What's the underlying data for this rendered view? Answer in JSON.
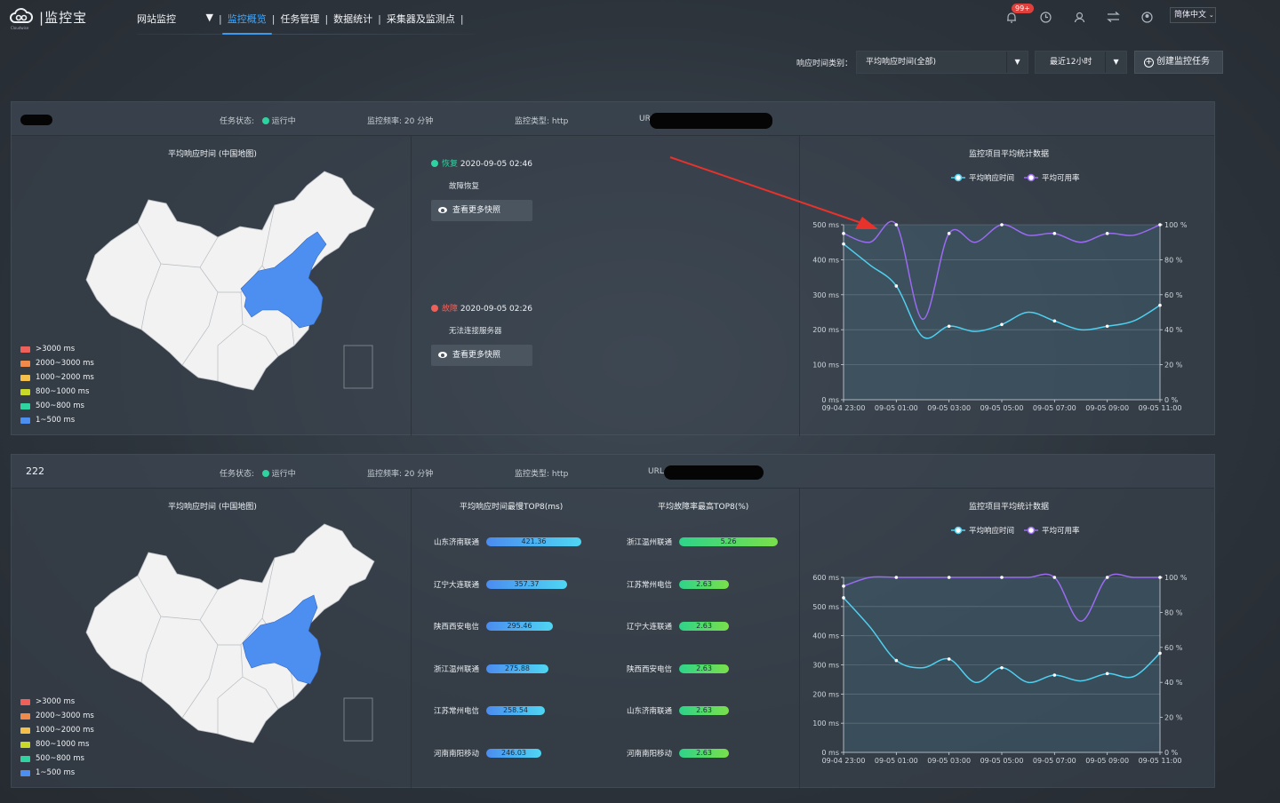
{
  "app": {
    "logo_text": "监控宝",
    "logo_sub": "Cloudwise",
    "nav": {
      "site_select": "网站监控",
      "items": [
        "监控概览",
        "任务管理",
        "数据统计",
        "采集器及监测点"
      ]
    },
    "notification_count": "99+",
    "language": "简体中文"
  },
  "toolbar": {
    "resp_type_label": "响应时间类别：",
    "resp_type_value": "平均响应时间(全部)",
    "time_range": "最近12小时",
    "create_button": "创建监控任务"
  },
  "map_legend": [
    {
      "label": ">3000 ms",
      "color": "#f0605a"
    },
    {
      "label": "2000~3000 ms",
      "color": "#f08a4b"
    },
    {
      "label": "1000~2000 ms",
      "color": "#f5c04a"
    },
    {
      "label": "800~1000 ms",
      "color": "#c9d928"
    },
    {
      "label": "500~800 ms",
      "color": "#2ed3a0"
    },
    {
      "label": "1~500 ms",
      "color": "#4d8ff0"
    }
  ],
  "tasks": [
    {
      "name": "",
      "status_label": "任务状态:",
      "status": "运行中",
      "frequency": "监控频率: 20 分钟",
      "type": "监控类型: http",
      "url_label": "URL",
      "map_title": "平均响应时间 (中国地图)",
      "events": [
        {
          "tag": "恢复",
          "time": "2020-09-05 02:46",
          "desc": "故障恢复",
          "color": "#2ed3a0",
          "button": "查看更多快照"
        },
        {
          "tag": "故障",
          "time": "2020-09-05 02:26",
          "desc": "无法连接服务器",
          "color": "#f0605a",
          "button": "查看更多快照"
        }
      ],
      "chart_title": "监控项目平均统计数据"
    },
    {
      "name": "222",
      "status_label": "任务状态:",
      "status": "运行中",
      "frequency": "监控频率: 20 分钟",
      "type": "监控类型: http",
      "url_label": "URL",
      "map_title": "平均响应时间 (中国地图)",
      "rank_resp_title": "平均响应时间最慢TOP8(ms)",
      "rank_fail_title": "平均故障率最高TOP8(%)",
      "rank_resp": [
        {
          "name": "山东济南联通",
          "value": "421.36",
          "frac": 1.0
        },
        {
          "name": "辽宁大连联通",
          "value": "357.37",
          "frac": 0.848
        },
        {
          "name": "陕西西安电信",
          "value": "295.46",
          "frac": 0.701
        },
        {
          "name": "浙江温州联通",
          "value": "275.88",
          "frac": 0.655
        },
        {
          "name": "江苏常州电信",
          "value": "258.54",
          "frac": 0.614
        },
        {
          "name": "河南南阳移动",
          "value": "246.03",
          "frac": 0.584
        }
      ],
      "rank_fail": [
        {
          "name": "浙江温州联通",
          "value": "5.26",
          "frac": 1.0
        },
        {
          "name": "江苏常州电信",
          "value": "2.63",
          "frac": 0.5
        },
        {
          "name": "辽宁大连联通",
          "value": "2.63",
          "frac": 0.5
        },
        {
          "name": "陕西西安电信",
          "value": "2.63",
          "frac": 0.5
        },
        {
          "name": "山东济南联通",
          "value": "2.63",
          "frac": 0.5
        },
        {
          "name": "河南南阳移动",
          "value": "2.63",
          "frac": 0.5
        }
      ],
      "chart_title": "监控项目平均统计数据"
    }
  ],
  "chart_data": [
    {
      "type": "line",
      "title": "监控项目平均统计数据",
      "series": [
        {
          "name": "平均响应时间",
          "color": "#4fd0f0",
          "axis": "left",
          "values": [
            445,
            385,
            325,
            180,
            210,
            195,
            215,
            250,
            225,
            200,
            210,
            225,
            270
          ]
        },
        {
          "name": "平均可用率",
          "color": "#9a6bf0",
          "axis": "right",
          "values": [
            95,
            90,
            100,
            46,
            95,
            90,
            100,
            94,
            95,
            90,
            95,
            94,
            100
          ]
        }
      ],
      "x_ticks": [
        "09-04 23:00",
        "09-05 01:00",
        "09-05 03:00",
        "09-05 05:00",
        "09-05 07:00",
        "09-05 09:00",
        "09-05 11:00"
      ],
      "y_left": {
        "ticks": [
          "0 ms",
          "100 ms",
          "200 ms",
          "300 ms",
          "400 ms",
          "500 ms"
        ],
        "max": 500
      },
      "y_right": {
        "ticks": [
          "0 %",
          "20 %",
          "40 %",
          "60 %",
          "80 %",
          "100 %"
        ],
        "max": 100
      }
    },
    {
      "type": "line",
      "title": "监控项目平均统计数据",
      "series": [
        {
          "name": "平均响应时间",
          "color": "#4fd0f0",
          "axis": "left",
          "values": [
            530,
            430,
            315,
            290,
            320,
            240,
            290,
            240,
            265,
            245,
            270,
            260,
            340
          ]
        },
        {
          "name": "平均可用率",
          "color": "#9a6bf0",
          "axis": "right",
          "values": [
            95,
            100,
            100,
            100,
            100,
            100,
            100,
            100,
            100,
            75,
            100,
            100,
            100
          ]
        }
      ],
      "x_ticks": [
        "09-04 23:00",
        "09-05 01:00",
        "09-05 03:00",
        "09-05 05:00",
        "09-05 07:00",
        "09-05 09:00",
        "09-05 11:00"
      ],
      "y_left": {
        "ticks": [
          "0 ms",
          "100 ms",
          "200 ms",
          "300 ms",
          "400 ms",
          "500 ms",
          "600 ms"
        ],
        "max": 600
      },
      "y_right": {
        "ticks": [
          "0 %",
          "20 %",
          "40 %",
          "60 %",
          "80 %",
          "100 %"
        ],
        "max": 100
      }
    }
  ]
}
